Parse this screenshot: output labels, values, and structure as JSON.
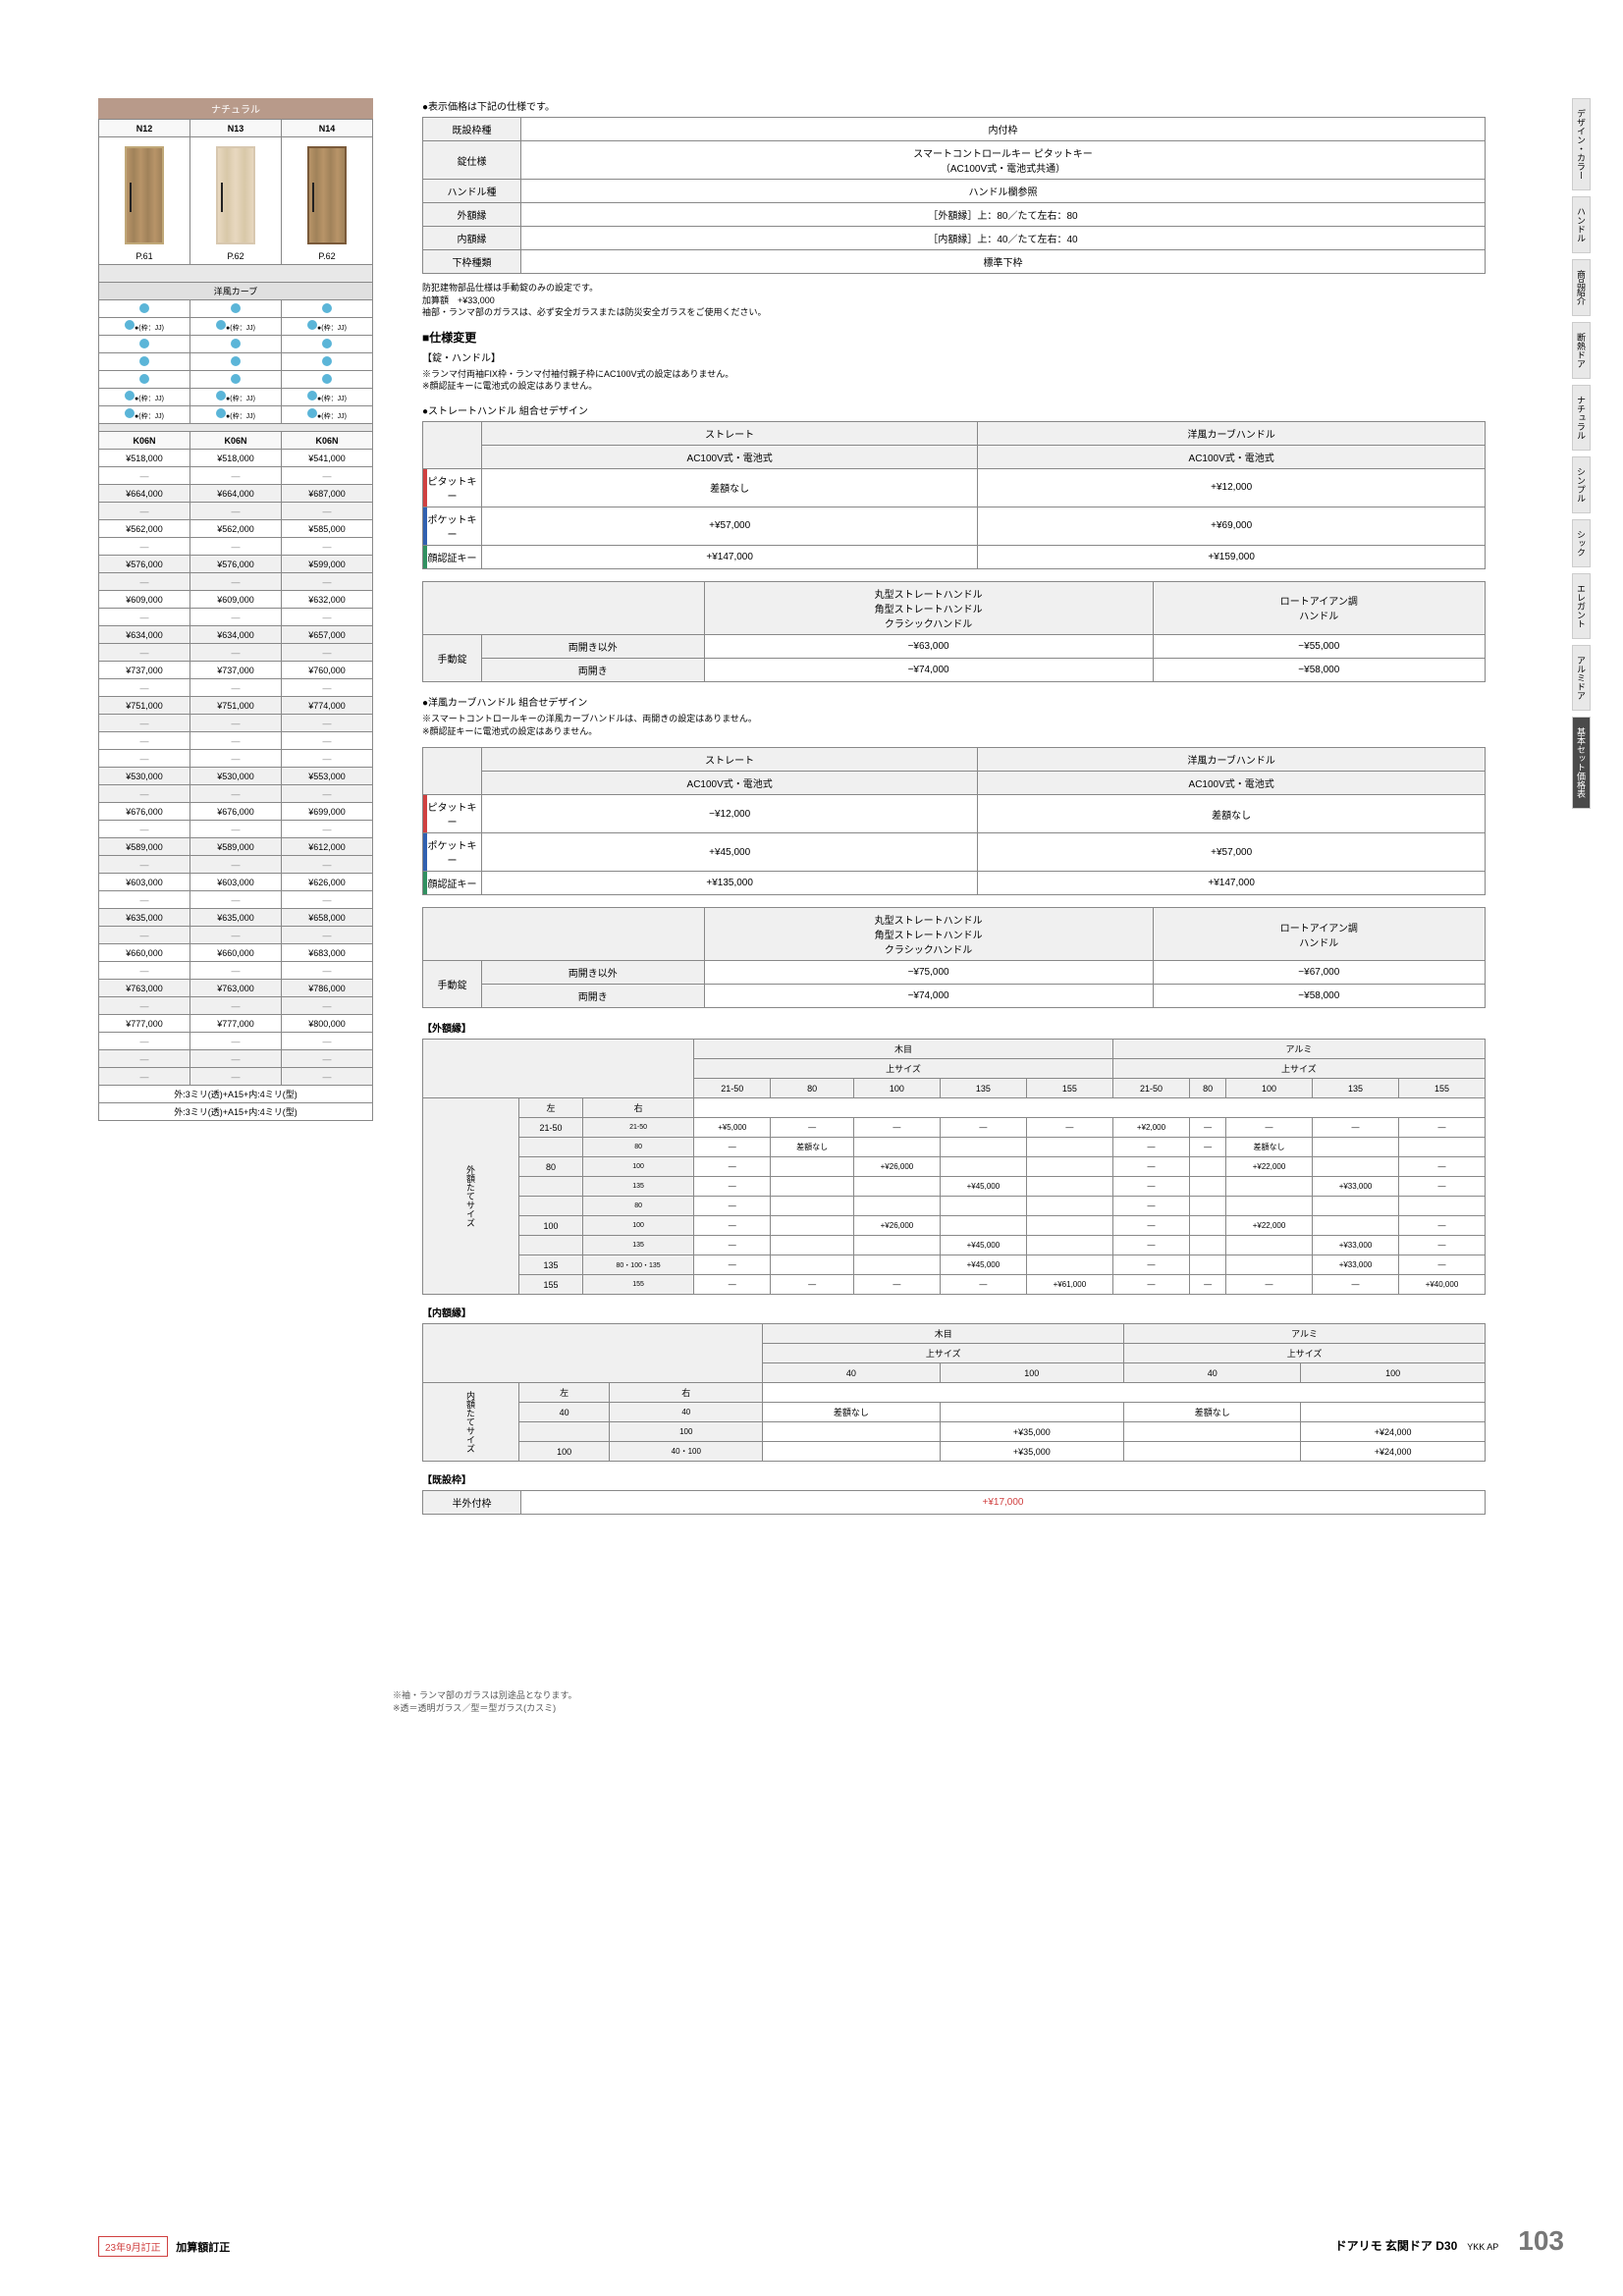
{
  "natural_header": "ナチュラル",
  "door_cols": [
    "N12",
    "N13",
    "N14"
  ],
  "door_pages": [
    "P.61",
    "P.62",
    "P.62"
  ],
  "curve_header": "洋風カーブ",
  "frame_label": "●(枠：JJ)",
  "k_codes": [
    "K06N",
    "K06N",
    "K06N"
  ],
  "price_rows": [
    [
      "¥518,000",
      "¥518,000",
      "¥541,000"
    ],
    [
      "—",
      "—",
      "—"
    ],
    [
      "¥664,000",
      "¥664,000",
      "¥687,000"
    ],
    [
      "—",
      "—",
      "—"
    ],
    [
      "¥562,000",
      "¥562,000",
      "¥585,000"
    ],
    [
      "—",
      "—",
      "—"
    ],
    [
      "¥576,000",
      "¥576,000",
      "¥599,000"
    ],
    [
      "—",
      "—",
      "—"
    ],
    [
      "¥609,000",
      "¥609,000",
      "¥632,000"
    ],
    [
      "—",
      "—",
      "—"
    ],
    [
      "¥634,000",
      "¥634,000",
      "¥657,000"
    ],
    [
      "—",
      "—",
      "—"
    ],
    [
      "¥737,000",
      "¥737,000",
      "¥760,000"
    ],
    [
      "—",
      "—",
      "—"
    ],
    [
      "¥751,000",
      "¥751,000",
      "¥774,000"
    ],
    [
      "—",
      "—",
      "—"
    ],
    [
      "—",
      "—",
      "—"
    ],
    [
      "—",
      "—",
      "—"
    ],
    [
      "¥530,000",
      "¥530,000",
      "¥553,000"
    ],
    [
      "—",
      "—",
      "—"
    ],
    [
      "¥676,000",
      "¥676,000",
      "¥699,000"
    ],
    [
      "—",
      "—",
      "—"
    ],
    [
      "¥589,000",
      "¥589,000",
      "¥612,000"
    ],
    [
      "—",
      "—",
      "—"
    ],
    [
      "¥603,000",
      "¥603,000",
      "¥626,000"
    ],
    [
      "—",
      "—",
      "—"
    ],
    [
      "¥635,000",
      "¥635,000",
      "¥658,000"
    ],
    [
      "—",
      "—",
      "—"
    ],
    [
      "¥660,000",
      "¥660,000",
      "¥683,000"
    ],
    [
      "—",
      "—",
      "—"
    ],
    [
      "¥763,000",
      "¥763,000",
      "¥786,000"
    ],
    [
      "—",
      "—",
      "—"
    ],
    [
      "¥777,000",
      "¥777,000",
      "¥800,000"
    ],
    [
      "—",
      "—",
      "—"
    ],
    [
      "—",
      "—",
      "—"
    ],
    [
      "—",
      "—",
      "—"
    ]
  ],
  "glass_spec1": "外:3ミリ(透)+A15+内:4ミリ(型)",
  "glass_spec2": "外:3ミリ(透)+A15+内:4ミリ(型)",
  "glass_notes": "※袖・ランマ部のガラスは別途品となります。\n※透＝透明ガラス／型＝型ガラス(カスミ)",
  "spec_note": "●表示価格は下記の仕様です。",
  "spec_rows": [
    [
      "既設枠種",
      "内付枠"
    ],
    [
      "錠仕様",
      "スマートコントロールキー ピタットキー\n（AC100V式・電池式共通）"
    ],
    [
      "ハンドル種",
      "ハンドル欄参照"
    ],
    [
      "外額縁",
      "［外額縁］上：80／たて左右：80"
    ],
    [
      "内額縁",
      "［内額縁］上：40／たて左右：40"
    ],
    [
      "下枠種類",
      "標準下枠"
    ]
  ],
  "spec_footnote": "防犯建物部品仕様は手動錠のみの設定です。\n加算額　+¥33,000\n袖部・ランマ部のガラスは、必ず安全ガラスまたは防災安全ガラスをご使用ください。",
  "change_title": "■仕様変更",
  "lock_handle_title": "【錠・ハンドル】",
  "lock_notes": "※ランマ付両袖FIX枠・ランマ付袖付親子枠にAC100V式の設定はありません。\n※顔認証キーに電池式の設定はありません。",
  "straight_title": "●ストレートハンドル 組合せデザイン",
  "handle_headers": [
    "ストレート",
    "洋風カーブハンドル"
  ],
  "handle_sub": [
    "AC100V式・電池式",
    "AC100V式・電池式"
  ],
  "key_rows1": [
    {
      "label": "ピタットキー",
      "color": "red",
      "vals": [
        "差額なし",
        "+¥12,000"
      ]
    },
    {
      "label": "ポケットキー",
      "color": "blue",
      "vals": [
        "+¥57,000",
        "+¥69,000"
      ]
    },
    {
      "label": "顔認証キー",
      "color": "green",
      "vals": [
        "+¥147,000",
        "+¥159,000"
      ]
    }
  ],
  "manual_headers": [
    "丸型ストレートハンドル\n角型ストレートハンドル\nクラシックハンドル",
    "ロートアイアン調\nハンドル"
  ],
  "manual_rows1": [
    {
      "label": "手動錠",
      "sub": "両開き以外",
      "vals": [
        "−¥63,000",
        "−¥55,000"
      ]
    },
    {
      "label": "",
      "sub": "両開き",
      "vals": [
        "−¥74,000",
        "−¥58,000"
      ]
    }
  ],
  "curve_title": "●洋風カーブハンドル 組合せデザイン",
  "curve_notes": "※スマートコントロールキーの洋風カーブハンドルは、両開きの設定はありません。\n※顔認証キーに電池式の設定はありません。",
  "key_rows2": [
    {
      "label": "ピタットキー",
      "color": "red",
      "vals": [
        "−¥12,000",
        "差額なし"
      ]
    },
    {
      "label": "ポケットキー",
      "color": "blue",
      "vals": [
        "+¥45,000",
        "+¥57,000"
      ]
    },
    {
      "label": "顔認証キー",
      "color": "green",
      "vals": [
        "+¥135,000",
        "+¥147,000"
      ]
    }
  ],
  "manual_rows2": [
    {
      "label": "手動錠",
      "sub": "両開き以外",
      "vals": [
        "−¥75,000",
        "−¥67,000"
      ]
    },
    {
      "label": "",
      "sub": "両開き",
      "vals": [
        "−¥74,000",
        "−¥58,000"
      ]
    }
  ],
  "outer_frame_title": "【外額縁】",
  "outer_frame": {
    "top_headers": [
      "木目",
      "アルミ"
    ],
    "size_label": "上サイズ",
    "lr_labels": [
      "左",
      "右"
    ],
    "sizes": [
      "21-50",
      "80",
      "100",
      "135",
      "155"
    ],
    "side_label": "外額たてサイズ",
    "rows": [
      {
        "l": "21-50",
        "r": "21-50",
        "woku": [
          "+¥5,000",
          "—",
          "—",
          "—",
          "—"
        ],
        "alum": [
          "+¥2,000",
          "—",
          "—",
          "—",
          "—"
        ]
      },
      {
        "l": "",
        "r": "80",
        "woku": [
          "—",
          "差額なし",
          "",
          "",
          ""
        ],
        "alum": [
          "—",
          "—",
          "差額なし",
          "",
          ""
        ]
      },
      {
        "l": "80",
        "r": "100",
        "woku": [
          "—",
          "",
          "+¥26,000",
          "",
          ""
        ],
        "alum": [
          "—",
          "",
          "+¥22,000",
          "",
          "—"
        ]
      },
      {
        "l": "",
        "r": "135",
        "woku": [
          "—",
          "",
          "",
          "+¥45,000",
          ""
        ],
        "alum": [
          "—",
          "",
          "",
          "+¥33,000",
          "—"
        ]
      },
      {
        "l": "",
        "r": "80",
        "woku": [
          "—",
          "",
          "",
          "",
          ""
        ],
        "alum": [
          "—",
          "",
          "",
          "",
          ""
        ]
      },
      {
        "l": "100",
        "r": "100",
        "woku": [
          "—",
          "",
          "+¥26,000",
          "",
          ""
        ],
        "alum": [
          "—",
          "",
          "+¥22,000",
          "",
          "—"
        ]
      },
      {
        "l": "",
        "r": "135",
        "woku": [
          "—",
          "",
          "",
          "+¥45,000",
          ""
        ],
        "alum": [
          "—",
          "",
          "",
          "+¥33,000",
          "—"
        ]
      },
      {
        "l": "135",
        "r": "80・100・135",
        "woku": [
          "—",
          "",
          "",
          "+¥45,000",
          ""
        ],
        "alum": [
          "—",
          "",
          "",
          "+¥33,000",
          "—"
        ]
      },
      {
        "l": "155",
        "r": "155",
        "woku": [
          "—",
          "—",
          "—",
          "—",
          "+¥61,000"
        ],
        "alum": [
          "—",
          "—",
          "—",
          "—",
          "+¥40,000"
        ]
      }
    ]
  },
  "inner_frame_title": "【内額縁】",
  "inner_frame": {
    "top_headers": [
      "木目",
      "アルミ"
    ],
    "sizes": [
      "40",
      "100"
    ],
    "side_label": "内額たてサイズ",
    "rows": [
      {
        "l": "40",
        "r": "40",
        "woku": [
          "差額なし",
          ""
        ],
        "alum": [
          "差額なし",
          ""
        ]
      },
      {
        "l": "",
        "r": "100",
        "woku": [
          "",
          "+¥35,000"
        ],
        "alum": [
          "",
          "+¥24,000"
        ]
      },
      {
        "l": "100",
        "r": "40・100",
        "woku": [
          "",
          "+¥35,000"
        ],
        "alum": [
          "",
          "+¥24,000"
        ]
      }
    ]
  },
  "exist_title": "【既設枠】",
  "exist_row": [
    "半外付枠",
    "+¥17,000"
  ],
  "tabs": [
    "デザイン・カラー",
    "ハンドル",
    "商品紹介",
    "断熱ドア",
    "ナチュラル",
    "シンプル",
    "シック",
    "エレガント",
    "アルミドア",
    "基本セット価格表"
  ],
  "active_tab": 9,
  "revision": "23年9月訂正",
  "revision_text": "加算額訂正",
  "footer_title": "ドアリモ 玄関ドア D30",
  "brand": "YKK AP",
  "page_num": "103"
}
